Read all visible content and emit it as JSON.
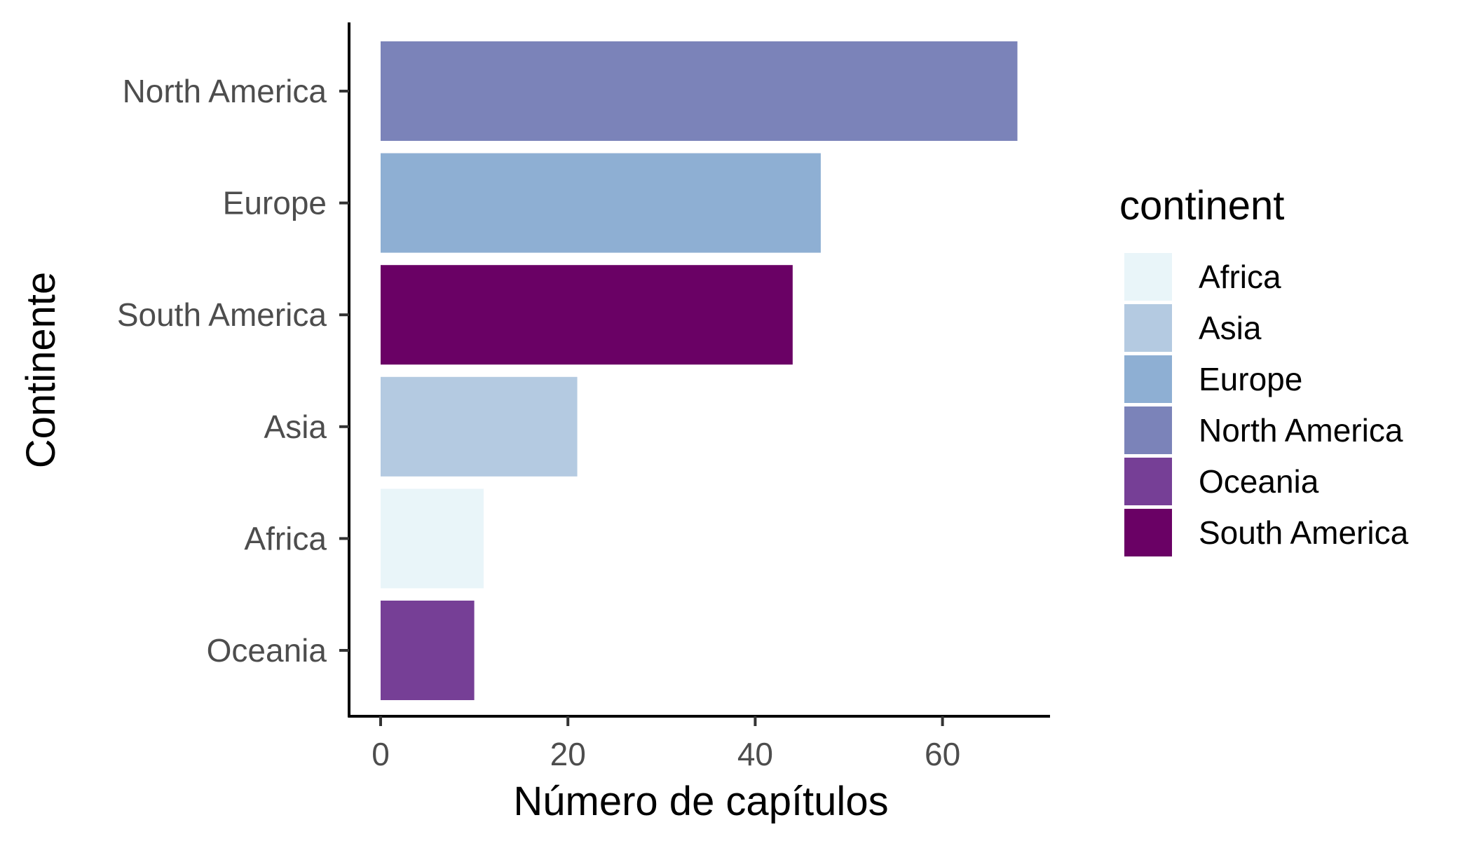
{
  "chart_data": {
    "type": "bar",
    "orientation": "horizontal",
    "xlabel": "Número de capítulos",
    "ylabel": "Continente",
    "xlim": [
      0,
      71.5
    ],
    "xticks": [
      0,
      20,
      40,
      60
    ],
    "grid": false,
    "categories": [
      "North America",
      "Europe",
      "South America",
      "Asia",
      "Africa",
      "Oceania"
    ],
    "values": [
      68,
      47,
      44,
      21,
      11,
      10
    ],
    "bar_colors": [
      "#7b83b9",
      "#8eafd3",
      "#6a0165",
      "#b4cae1",
      "#e9f5f9",
      "#763f96"
    ],
    "legend": {
      "title": "continent",
      "position": "right",
      "items": [
        {
          "label": "Africa",
          "color": "#e9f5f9"
        },
        {
          "label": "Asia",
          "color": "#b4cae1"
        },
        {
          "label": "Europe",
          "color": "#8eafd3"
        },
        {
          "label": "North America",
          "color": "#7b83b9"
        },
        {
          "label": "Oceania",
          "color": "#763f96"
        },
        {
          "label": "South America",
          "color": "#6a0165"
        }
      ]
    }
  }
}
